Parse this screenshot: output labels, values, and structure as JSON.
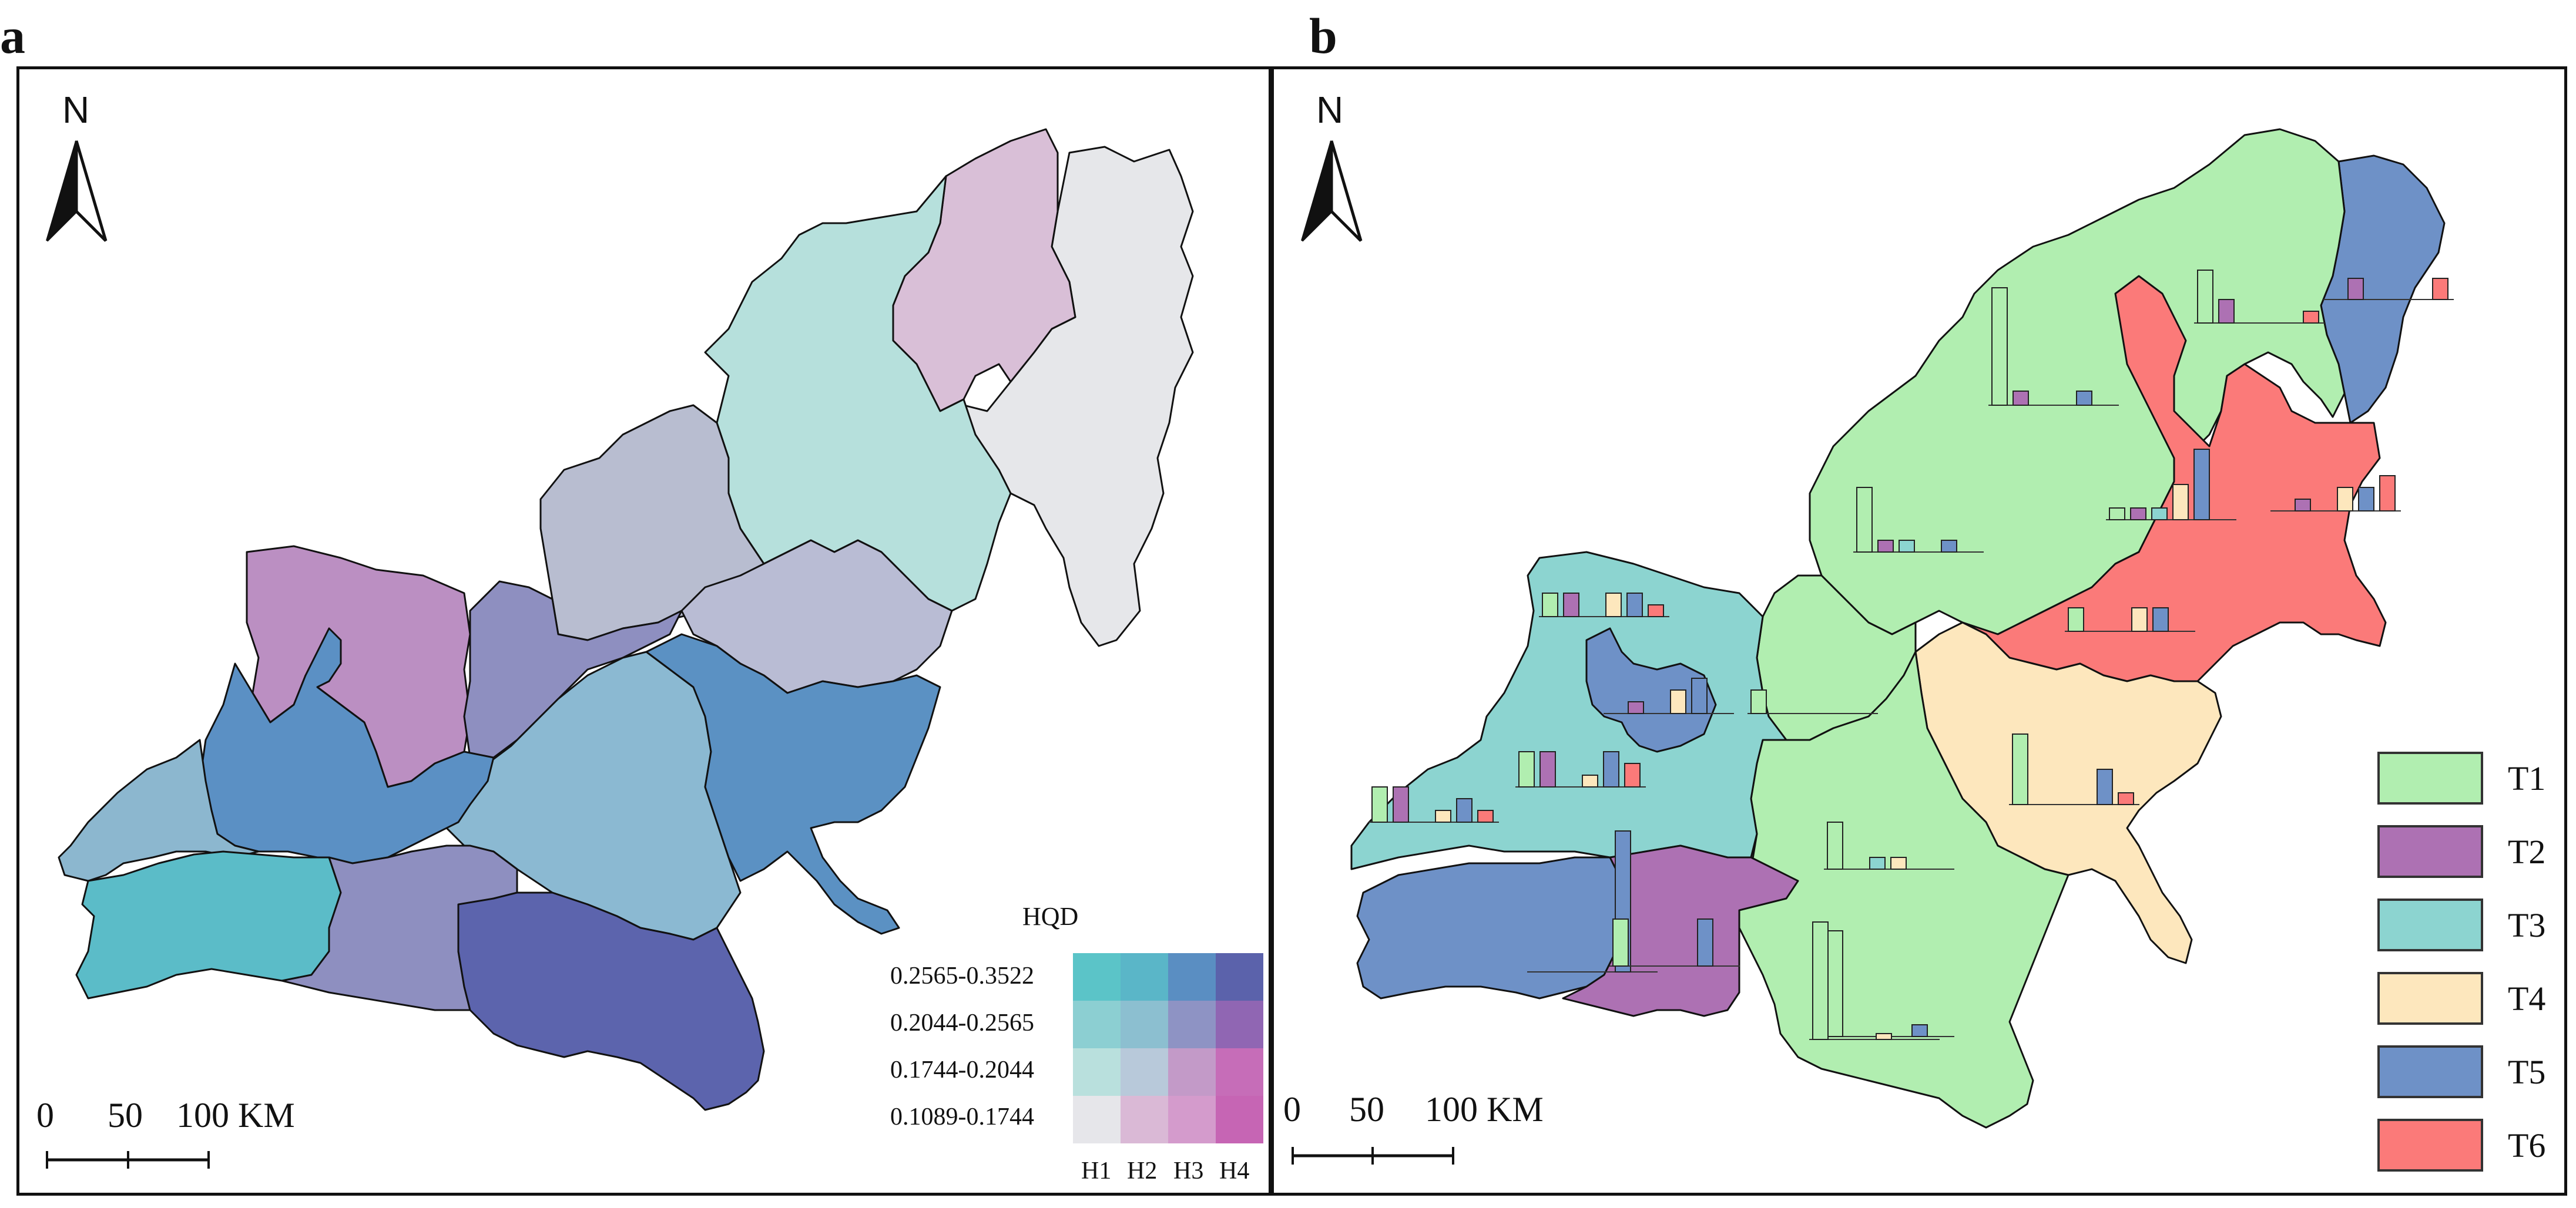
{
  "panel_a": {
    "letter": "a",
    "scale_bar": {
      "ticks": [
        "0",
        "50",
        "100 KM"
      ]
    },
    "north_label": "N",
    "legend": {
      "title": "HQD",
      "ranges": [
        "0.2565-0.3522",
        "0.2044-0.2565",
        "0.1744-0.2044",
        "0.1089-0.1744"
      ],
      "columns": [
        "H1",
        "H2",
        "H3",
        "H4"
      ],
      "grid_colors": [
        [
          "#5bc4c8",
          "#5ab6c8",
          "#5a8ec2",
          "#5b62ab"
        ],
        [
          "#8ccfd2",
          "#8cbfd0",
          "#8e93c4",
          "#9066b3"
        ],
        [
          "#b9e0dd",
          "#b8c9da",
          "#c39ac8",
          "#c66db8"
        ],
        [
          "#e6e6ea",
          "#dab9d6",
          "#d49bcc",
          "#c665b4"
        ]
      ]
    },
    "region_colors": {
      "northeast": "#e6e7ea",
      "north_top": "#d9bfd7",
      "north": "#b6e0dc",
      "center_north": "#b8bdd0",
      "center_east": "#b9bcd4",
      "west_purple": "#bb8fc2",
      "west_mid": "#8e8fc0",
      "center_blue": "#8bb9d2",
      "east_blue": "#5b91c3",
      "west_blue": "#5b90c4",
      "far_west": "#8cb7cf",
      "southwest": "#5bbcc8",
      "south_mid": "#8e8fc0",
      "south": "#5c64ad"
    }
  },
  "panel_b": {
    "letter": "b",
    "scale_bar": {
      "ticks": [
        "0",
        "50",
        "100 KM"
      ]
    },
    "north_label": "N",
    "legend": [
      {
        "label": "T1",
        "color": "#b1eeb0"
      },
      {
        "label": "T2",
        "color": "#ad71b3"
      },
      {
        "label": "T3",
        "color": "#8cd4d0"
      },
      {
        "label": "T4",
        "color": "#fde7bd"
      },
      {
        "label": "T5",
        "color": "#6e91c7"
      },
      {
        "label": "T6",
        "color": "#fb7a79"
      }
    ],
    "region_types": {
      "T1": "#b1eeb0",
      "T2": "#ad71b3",
      "T3": "#8cd4d0",
      "T4": "#fde7bd",
      "T5": "#6e91c7",
      "T6": "#fb7a79"
    }
  },
  "bar_series": [
    "T1",
    "T2",
    "T3",
    "T4",
    "T5",
    "T6"
  ],
  "bar_charts": [
    {
      "id": "b-nw",
      "values": [
        0.2,
        0.0,
        0.0,
        0.0,
        0.0,
        0.0
      ]
    },
    {
      "id": "b-top-mid",
      "values": [
        1.0,
        0.12,
        0.0,
        0.0,
        0.12,
        0.0
      ]
    },
    {
      "id": "b-top-right",
      "values": [
        0.45,
        0.2,
        0.0,
        0.0,
        0.0,
        0.1
      ]
    },
    {
      "id": "b-far-ne",
      "values": [
        0.0,
        0.18,
        0.0,
        0.0,
        0.0,
        0.18
      ]
    },
    {
      "id": "b-mid-north",
      "values": [
        0.55,
        0.1,
        0.1,
        0.0,
        0.1,
        0.0
      ]
    },
    {
      "id": "b-red-center",
      "values": [
        0.1,
        0.1,
        0.1,
        0.3,
        0.6,
        0.0
      ]
    },
    {
      "id": "b-red-east",
      "values": [
        0.0,
        0.1,
        0.0,
        0.2,
        0.2,
        0.3
      ]
    },
    {
      "id": "b-red-south",
      "values": [
        0.2,
        0.0,
        0.0,
        0.2,
        0.2,
        0.0
      ]
    },
    {
      "id": "b-teal-nw",
      "values": [
        0.2,
        0.2,
        0.0,
        0.2,
        0.2,
        0.1
      ]
    },
    {
      "id": "b-blue-center",
      "values": [
        0.0,
        0.1,
        0.0,
        0.2,
        0.3,
        0.0
      ]
    },
    {
      "id": "b-teal-sw",
      "values": [
        0.3,
        0.3,
        0.0,
        0.1,
        0.3,
        0.2
      ]
    },
    {
      "id": "b-far-west",
      "values": [
        0.3,
        0.3,
        0.0,
        0.1,
        0.2,
        0.1
      ]
    },
    {
      "id": "b-green-mid",
      "values": [
        0.4,
        0.0,
        0.1,
        0.1,
        0.0,
        0.0
      ]
    },
    {
      "id": "b-yellow",
      "values": [
        0.6,
        0.0,
        0.0,
        0.0,
        0.3,
        0.1
      ]
    },
    {
      "id": "b-green-low",
      "values": [
        0.9,
        0.0,
        0.0,
        0.0,
        0.1,
        0.0
      ]
    },
    {
      "id": "b-blue-sw",
      "values": [
        0.0,
        0.0,
        0.0,
        0.0,
        1.2,
        0.0
      ]
    },
    {
      "id": "b-purple-s",
      "values": [
        0.4,
        0.0,
        0.0,
        0.0,
        0.4,
        0.0
      ]
    },
    {
      "id": "b-green-s",
      "values": [
        1.0,
        0.0,
        0.0,
        0.05,
        0.0,
        0.0
      ]
    }
  ]
}
